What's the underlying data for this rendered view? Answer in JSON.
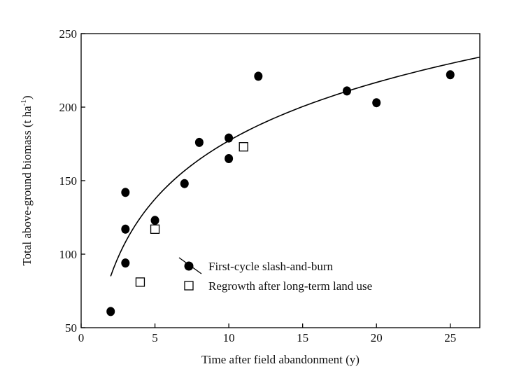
{
  "chart_data": {
    "type": "scatter",
    "xlabel": "Time after field abandonment (y)",
    "ylabel_main": "Total above-ground biomass (t ha",
    "ylabel_sup": "-1",
    "ylabel_close": ")",
    "xlim": [
      0,
      27
    ],
    "ylim": [
      50,
      250
    ],
    "x_ticks": [
      0,
      5,
      10,
      15,
      20,
      25
    ],
    "y_ticks": [
      50,
      100,
      150,
      200,
      250
    ],
    "x_tick_labels": [
      "0",
      "5",
      "10",
      "15",
      "20",
      "25"
    ],
    "y_tick_labels": [
      "50",
      "100",
      "150",
      "200",
      "250"
    ],
    "grid": false,
    "legend_position": "center",
    "series": [
      {
        "name": "First-cycle slash-and-burn",
        "marker": "filled-circle",
        "color": "#000000",
        "points": [
          {
            "x": 2,
            "y": 61
          },
          {
            "x": 3,
            "y": 142
          },
          {
            "x": 3,
            "y": 117
          },
          {
            "x": 3,
            "y": 94
          },
          {
            "x": 5,
            "y": 123
          },
          {
            "x": 7,
            "y": 148
          },
          {
            "x": 8,
            "y": 176
          },
          {
            "x": 10,
            "y": 179
          },
          {
            "x": 10,
            "y": 165
          },
          {
            "x": 12,
            "y": 221
          },
          {
            "x": 18,
            "y": 211
          },
          {
            "x": 20,
            "y": 203
          },
          {
            "x": 25,
            "y": 222
          }
        ]
      },
      {
        "name": "Regrowth after long-term land use",
        "marker": "open-square",
        "color": "#000000",
        "points": [
          {
            "x": 4,
            "y": 81
          },
          {
            "x": 5,
            "y": 117
          },
          {
            "x": 11,
            "y": 173
          }
        ]
      }
    ],
    "fit_curve": {
      "type": "logarithmic",
      "x_start": 2,
      "x_end": 27,
      "y_at_start": 85,
      "y_at_end": 234
    }
  }
}
